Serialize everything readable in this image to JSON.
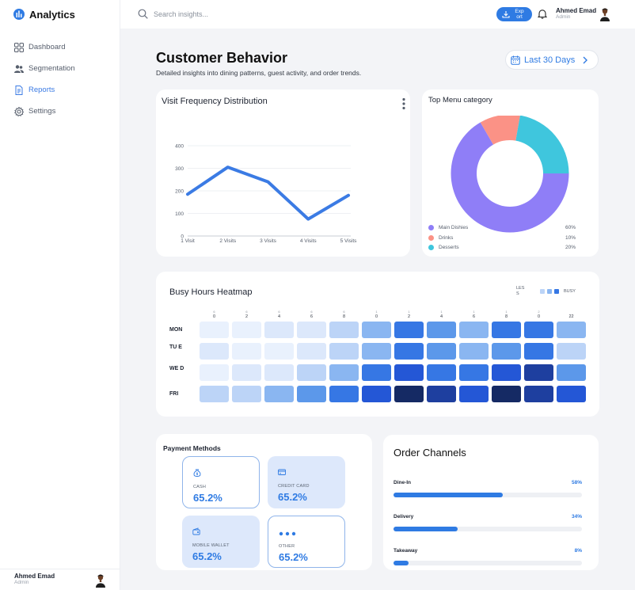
{
  "app": {
    "name": "Analytics"
  },
  "sidebar": {
    "items": [
      {
        "label": "Dashboard",
        "icon": "grid-icon",
        "active": false
      },
      {
        "label": "Segmentation",
        "icon": "users-icon",
        "active": false
      },
      {
        "label": "Reports",
        "icon": "document-icon",
        "active": true
      },
      {
        "label": "Settings",
        "icon": "gear-icon",
        "active": false
      }
    ],
    "user": {
      "name": "Ahmed Emad",
      "role": "Admin"
    }
  },
  "topbar": {
    "search_placeholder": "Search insights...",
    "export_label": "Exp ort",
    "user": {
      "name": "Ahmed Emad",
      "role": "Admin"
    }
  },
  "page": {
    "title": "Customer Behavior",
    "subtitle": "Detailed insights into dining patterns, guest activity, and order trends.",
    "date_range": "Last 30 Days"
  },
  "colors": {
    "accent": "#2f7be3"
  },
  "visit_card": {
    "title": "Visit Frequency Distribution"
  },
  "menu_card": {
    "title": "Top Menu category"
  },
  "heatmap": {
    "title": "Busy Hours Heatmap",
    "legend_low": "LES S",
    "legend_high": "BUSY",
    "hours": [
      {
        "tick": "6",
        "label": "0"
      },
      {
        "tick": "6",
        "label": "2"
      },
      {
        "tick": "6",
        "label": "4"
      },
      {
        "tick": "6",
        "label": "6"
      },
      {
        "tick": "6",
        "label": "8"
      },
      {
        "tick": "1",
        "label": "0"
      },
      {
        "tick": "1",
        "label": "2"
      },
      {
        "tick": "1",
        "label": "4"
      },
      {
        "tick": "1",
        "label": "6"
      },
      {
        "tick": "1",
        "label": "8"
      },
      {
        "tick": "2",
        "label": "0"
      },
      {
        "tick": "",
        "label": "22"
      }
    ],
    "rows": [
      {
        "label": "MON",
        "levels": [
          1,
          1,
          2,
          2,
          3,
          4,
          6,
          5,
          4,
          6,
          6,
          4
        ]
      },
      {
        "label": "TU E",
        "levels": [
          2,
          1,
          1,
          2,
          3,
          4,
          6,
          5,
          4,
          5,
          6,
          3
        ]
      },
      {
        "label": "WE D",
        "levels": [
          1,
          2,
          2,
          3,
          4,
          6,
          7,
          6,
          6,
          7,
          8,
          5
        ]
      },
      {
        "label": "FRI",
        "levels": [
          3,
          3,
          4,
          5,
          6,
          7,
          9,
          8,
          7,
          9,
          8,
          7
        ]
      }
    ],
    "palette": [
      "#ffffff",
      "#e9f1fd",
      "#dce8fb",
      "#bcd4f7",
      "#8ab6f1",
      "#5c98ea",
      "#3677e4",
      "#2457d6",
      "#1e3f9f",
      "#152a64"
    ]
  },
  "payments": {
    "title": "Payment Methods",
    "methods": [
      {
        "label": "CASH",
        "value": "65.2%",
        "icon": "money-bag-icon",
        "style": "outline"
      },
      {
        "label": "CREDIT CARD",
        "value": "65.2%",
        "icon": "credit-card-icon",
        "style": "fill"
      },
      {
        "label": "MOBILE WALLET",
        "value": "65.2%",
        "icon": "wallet-icon",
        "style": "fill"
      },
      {
        "label": "OTHER",
        "value": "65.2%",
        "icon": "more-dots-icon",
        "style": "outline"
      }
    ]
  },
  "order_channels": {
    "title": "Order Channels",
    "channels": [
      {
        "name": "Dine-In",
        "pct_label": "58%",
        "value": 58
      },
      {
        "name": "Delivery",
        "pct_label": "34%",
        "value": 34
      },
      {
        "name": "Takeaway",
        "pct_label": "8%",
        "value": 8
      }
    ]
  },
  "chart_data": [
    {
      "type": "line",
      "title": "Visit Frequency Distribution",
      "categories": [
        "1 Visit",
        "2 Visits",
        "3 Visits",
        "4 Visits",
        "5 Visits"
      ],
      "values": [
        185,
        305,
        240,
        75,
        180
      ],
      "ylim": [
        0,
        400
      ],
      "yticks": [
        "0",
        "100",
        "200",
        "300",
        "400"
      ],
      "grid": true,
      "color": "#3b7be4"
    },
    {
      "type": "pie",
      "title": "Top Menu category",
      "labels": [
        "Main Dishies",
        "Drinks",
        "Desserts"
      ],
      "values": [
        60,
        10,
        20
      ],
      "value_labels": [
        "60%",
        "10%",
        "20%"
      ],
      "colors": [
        "#8f7ef7",
        "#fb9286",
        "#3fc6dd"
      ]
    }
  ]
}
